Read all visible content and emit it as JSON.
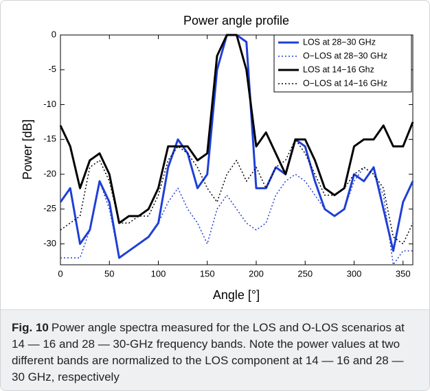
{
  "chart_data": {
    "type": "line",
    "title": "Power angle profile",
    "xlabel": "Angle [°]",
    "ylabel": "Power [dB]",
    "x": [
      0,
      10,
      20,
      30,
      40,
      50,
      60,
      70,
      80,
      90,
      100,
      110,
      120,
      130,
      140,
      150,
      160,
      170,
      180,
      190,
      200,
      210,
      220,
      230,
      240,
      250,
      260,
      270,
      280,
      290,
      300,
      310,
      320,
      330,
      340,
      350,
      360
    ],
    "xlim": [
      0,
      360
    ],
    "xticks": [
      0,
      50,
      100,
      150,
      200,
      250,
      300,
      350
    ],
    "ylim": [
      -33,
      0
    ],
    "yticks": [
      0,
      -5,
      -10,
      -15,
      -20,
      -25,
      -30
    ],
    "legend": "upper right",
    "series": [
      {
        "name": "LOS at 28−30 GHz",
        "color": "#1f3fd6",
        "style": "solid",
        "width": 3,
        "values": [
          -24,
          -22,
          -30,
          -28,
          -21,
          -24,
          -32,
          -31,
          -30,
          -29,
          -27,
          -19,
          -15,
          -17,
          -22,
          -20,
          -5,
          0,
          0,
          -1,
          -22,
          -22,
          -19,
          -20,
          -15,
          -16,
          -21,
          -25,
          -26,
          -25,
          -20,
          -21,
          -19,
          -25,
          -31,
          -24,
          -21
        ]
      },
      {
        "name": "O−LOS at 28−30 GHz",
        "color": "#1f3fd6",
        "style": "dotted",
        "width": 1.5,
        "values": [
          -32,
          -32,
          -32,
          -28,
          -21,
          -25,
          -32,
          -31,
          -30,
          -29,
          -27,
          -24,
          -22,
          -25,
          -27,
          -30,
          -25,
          -23,
          -25,
          -27,
          -28,
          -27,
          -23,
          -21,
          -20,
          -21,
          -23,
          -25,
          -26,
          -25,
          -21,
          -19,
          -20,
          -23,
          -33,
          -31,
          -31
        ]
      },
      {
        "name": "LOS at 14−16 Ghz",
        "color": "#000000",
        "style": "solid",
        "width": 3,
        "values": [
          -13,
          -16,
          -22,
          -18,
          -17,
          -20,
          -27,
          -26,
          -26,
          -25,
          -22,
          -16,
          -16,
          -16,
          -18,
          -17,
          -3,
          0,
          0,
          -5,
          -16,
          -14,
          -17,
          -20,
          -15,
          -15,
          -18,
          -22,
          -23,
          -22,
          -16,
          -15,
          -15,
          -13,
          -16,
          -16,
          -12.5
        ]
      },
      {
        "name": "O−LOS at 14−16 GHz",
        "color": "#000000",
        "style": "dotted",
        "width": 1.5,
        "values": [
          -28,
          -27,
          -26,
          -19,
          -18,
          -21,
          -27,
          -27,
          -26,
          -26,
          -23,
          -18,
          -16,
          -17,
          -19,
          -22,
          -24,
          -20,
          -18,
          -21,
          -19,
          -22,
          -19,
          -18,
          -15,
          -17,
          -20,
          -23,
          -23,
          -22,
          -20,
          -19,
          -20,
          -22,
          -29,
          -30,
          -27
        ]
      }
    ]
  },
  "caption": {
    "label": "Fig. 10",
    "text": "Power angle spectra measured for the LOS and O-LOS scenarios at 14 — 16 and 28 — 30-GHz frequency bands. Note the power values at two different bands are normalized to the LOS component at 14 — 16 and 28 — 30 GHz, respectively"
  }
}
